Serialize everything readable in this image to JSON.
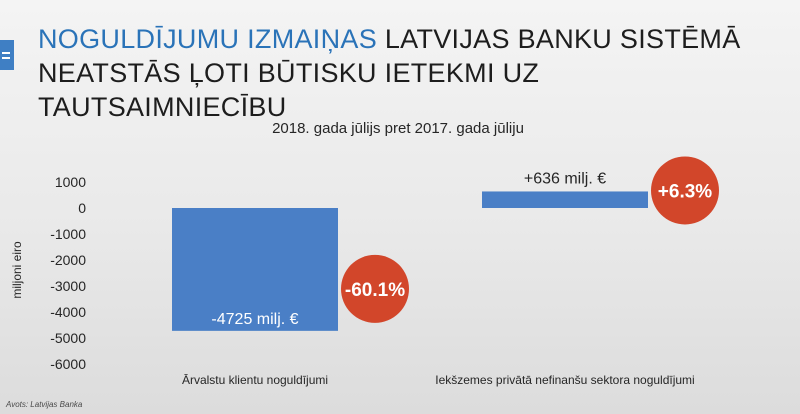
{
  "headline": {
    "accent": "NOGULDĪJUMU IZMAIŅAS",
    "line1_rest": " LATVIJAS BANKU SISTĒMĀ",
    "line2": "NEATSTĀS ĻOTI BŪTISKU IETEKMI UZ TAUTSAIMNIECĪBU"
  },
  "source": "Avots: Latvijas Banka",
  "colors": {
    "bar": "#4a7fc6",
    "badge": "#d2462a",
    "accent": "#2a73b8"
  },
  "chart_data": {
    "type": "bar",
    "title": "2018. gada jūlijs pret 2017. gada jūliju",
    "ylabel": "miljoni eiro",
    "ylim": [
      -6000,
      1000
    ],
    "yticks": [
      "1000",
      "0",
      "-1000",
      "-2000",
      "-3000",
      "-4000",
      "-5000",
      "-6000"
    ],
    "categories": [
      "Ārvalstu klientu noguldījumi",
      "Iekšzemes privātā nefinanšu sektora noguldījumi"
    ],
    "values": [
      -4725,
      636
    ],
    "data_labels": [
      "-4725 milj. €",
      "+636 milj. €"
    ],
    "percent_labels": [
      "-60.1%",
      "+6.3%"
    ],
    "grid": false,
    "legend": "none"
  }
}
